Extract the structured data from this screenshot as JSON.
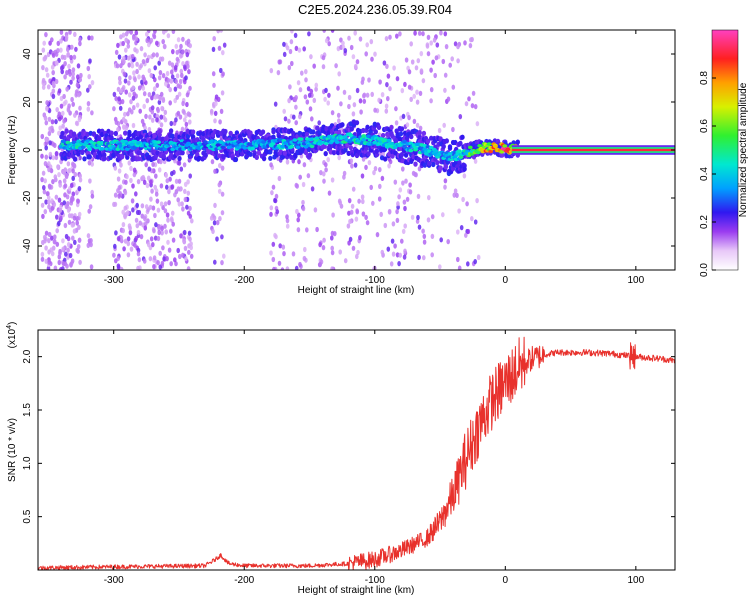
{
  "title": "C2E5.2024.236.05.39.R04",
  "chart_data": [
    {
      "type": "heatmap",
      "xlabel": "Height of straight line (km)",
      "ylabel": "Frequency (Hz)",
      "xlim": [
        -358,
        130
      ],
      "ylim": [
        -50,
        50
      ],
      "x_ticks": [
        -300,
        -200,
        -100,
        0,
        100
      ],
      "x_tick_labels": [
        "-300",
        "-200",
        "-100",
        "0",
        "100"
      ],
      "y_ticks": [
        -40,
        -20,
        0,
        20,
        40
      ],
      "y_tick_labels": [
        "-40",
        "-20",
        "0",
        "20",
        "40"
      ],
      "colorbar": {
        "label": "Normalized spectral amplitude",
        "range": [
          0,
          1
        ],
        "ticks": [
          0.0,
          0.2,
          0.4,
          0.6,
          0.8
        ],
        "tick_labels": [
          "0.0",
          "0.2",
          "0.4",
          "0.6",
          "0.8"
        ]
      },
      "ridge": {
        "x": [
          -340,
          -300,
          -250,
          -200,
          -150,
          -120,
          -100,
          -80,
          -60,
          -45,
          -35,
          -25,
          -15,
          -5,
          0,
          130
        ],
        "y": [
          2,
          2,
          2,
          2,
          3,
          5,
          4,
          2,
          0,
          -3,
          -2,
          0,
          1,
          1,
          0.5,
          0.5
        ],
        "amplitude": [
          0.45,
          0.45,
          0.4,
          0.4,
          0.45,
          0.5,
          0.45,
          0.45,
          0.45,
          0.4,
          0.45,
          0.6,
          0.8,
          0.9,
          0.95,
          0.95
        ]
      }
    },
    {
      "type": "line",
      "xlabel": "Height of straight line (km)",
      "ylabel": "SNR (10 * v/v)",
      "scale_label": "(x10",
      "scale_exponent": "4",
      "close_paren": ")",
      "xlim": [
        -358,
        130
      ],
      "ylim": [
        0,
        2.25
      ],
      "x_ticks": [
        -300,
        -200,
        -100,
        0,
        100
      ],
      "x_tick_labels": [
        "-300",
        "-200",
        "-100",
        "0",
        "100"
      ],
      "y_ticks": [
        0.5,
        1.0,
        1.5,
        2.0
      ],
      "y_tick_labels": [
        "0.5",
        "1.0",
        "1.5",
        "2.0"
      ],
      "series": [
        {
          "color": "#e8312c",
          "x": [
            -358,
            -300,
            -230,
            -222,
            -218,
            -212,
            -200,
            -150,
            -120,
            -100,
            -80,
            -60,
            -50,
            -40,
            -30,
            -20,
            -10,
            0,
            10,
            20,
            30,
            40,
            60,
            80,
            100,
            120,
            130
          ],
          "y": [
            0.02,
            0.03,
            0.04,
            0.1,
            0.14,
            0.06,
            0.04,
            0.04,
            0.06,
            0.1,
            0.18,
            0.3,
            0.45,
            0.7,
            1.05,
            1.35,
            1.6,
            1.75,
            1.9,
            1.98,
            2.02,
            2.04,
            2.04,
            2.03,
            2.0,
            1.98,
            1.96
          ]
        }
      ]
    }
  ]
}
